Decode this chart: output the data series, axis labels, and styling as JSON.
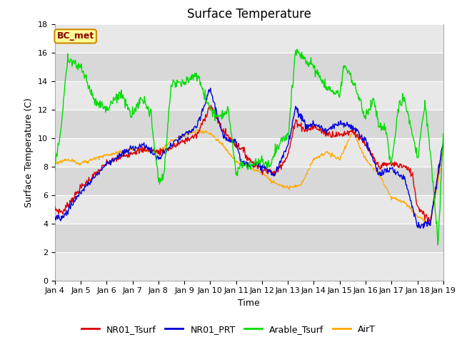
{
  "title": "Surface Temperature",
  "xlabel": "Time",
  "ylabel": "Surface Temperature (C)",
  "ylim": [
    0,
    18
  ],
  "yticks": [
    0,
    2,
    4,
    6,
    8,
    10,
    12,
    14,
    16,
    18
  ],
  "xtick_labels": [
    "Jan 4",
    "Jan 5",
    "Jan 6",
    "Jan 7",
    "Jan 8",
    "Jan 9",
    "Jan 10",
    "Jan 11",
    "Jan 12",
    "Jan 13",
    "Jan 14",
    "Jan 15",
    "Jan 16",
    "Jan 17",
    "Jan 18",
    "Jan 19"
  ],
  "series_colors": {
    "NR01_Tsurf": "#dd0000",
    "NR01_PRT": "#0000dd",
    "Arable_Tsurf": "#00dd00",
    "AirT": "#ffaa00"
  },
  "annotation_text": "BC_met",
  "annotation_bg": "#ffff99",
  "annotation_edge": "#cc8800",
  "title_fontsize": 12,
  "axis_label_fontsize": 9,
  "tick_fontsize": 8,
  "legend_fontsize": 9,
  "line_width": 1.0,
  "band_colors": [
    "#e8e8e8",
    "#d8d8d8"
  ]
}
